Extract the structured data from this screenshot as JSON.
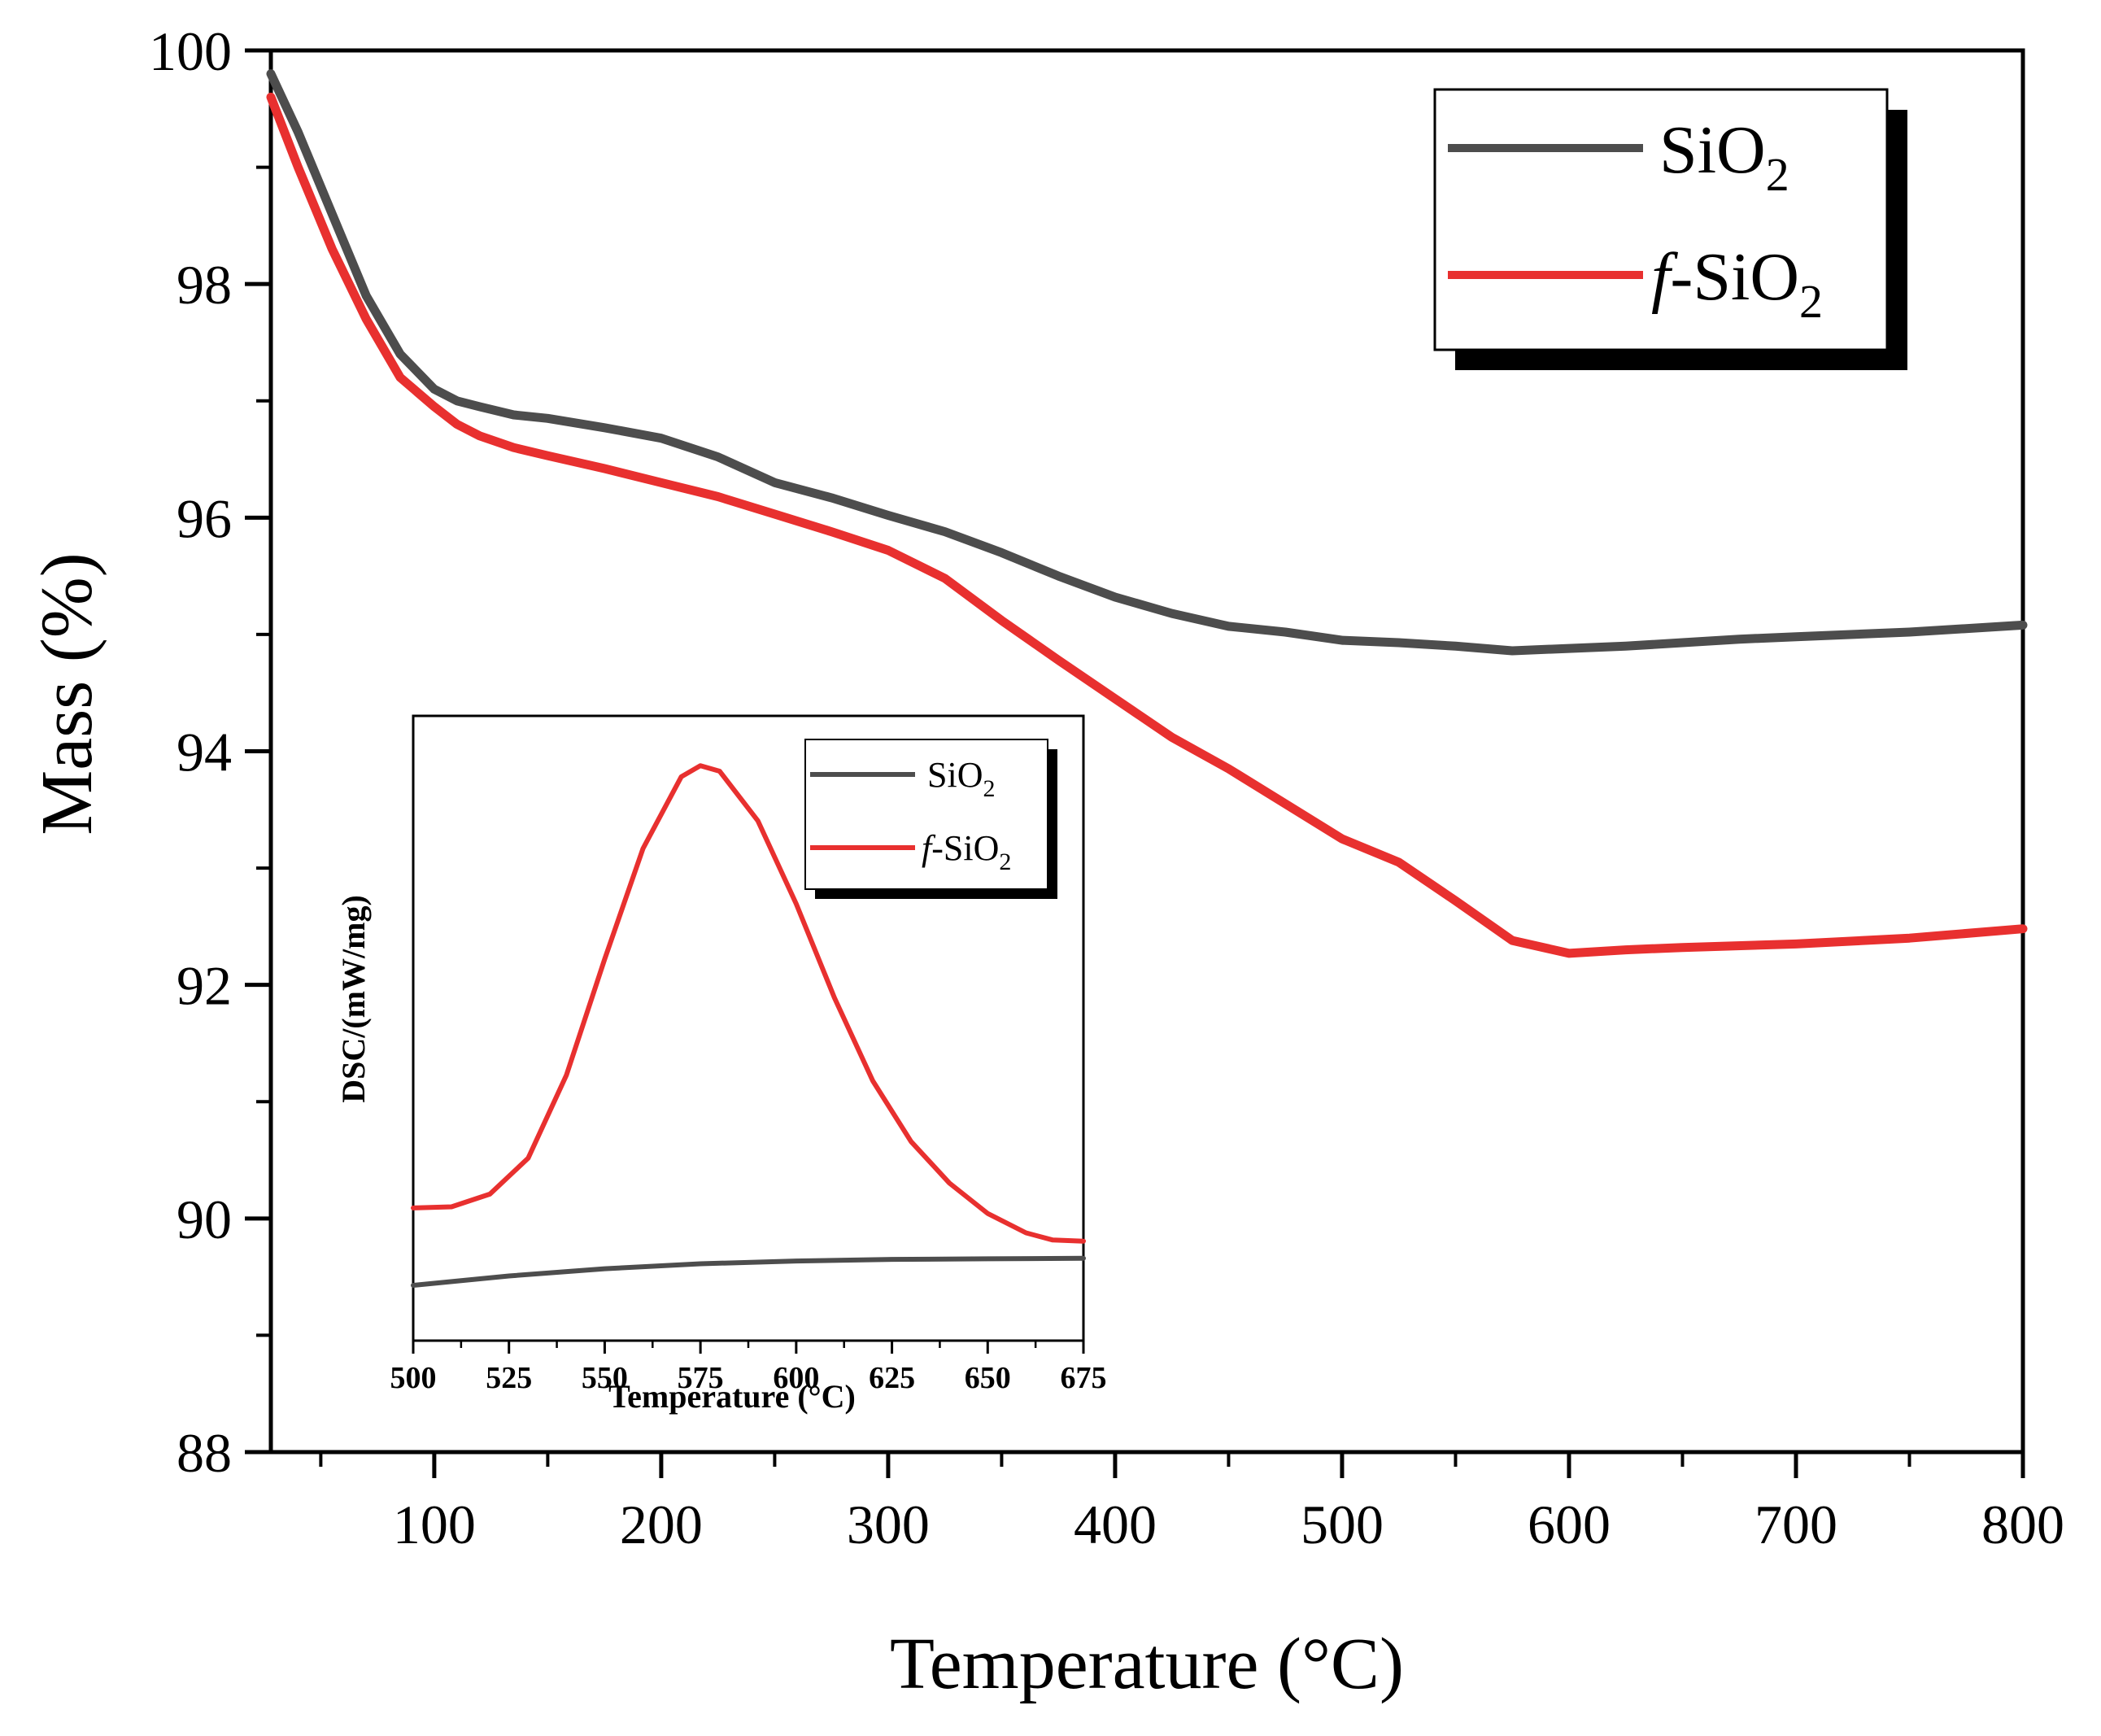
{
  "chart_data": [
    {
      "type": "line",
      "title": "",
      "xlabel": "Temperature (°C)",
      "ylabel": "Mass (%)",
      "xlim": [
        28,
        800
      ],
      "ylim": [
        88,
        100
      ],
      "xticks": [
        100,
        200,
        300,
        400,
        500,
        600,
        700,
        800
      ],
      "yticks": [
        88,
        90,
        92,
        94,
        96,
        98,
        100
      ],
      "legend": {
        "placement": "top-right"
      },
      "series": [
        {
          "name": "SiO2",
          "label_main": "SiO",
          "label_sub": "2",
          "label_prefix": "",
          "color": "#4d4d4d",
          "x": [
            28,
            40,
            55,
            70,
            85,
            100,
            110,
            120,
            135,
            150,
            175,
            200,
            225,
            250,
            275,
            300,
            325,
            350,
            375,
            400,
            425,
            450,
            475,
            500,
            525,
            550,
            575,
            600,
            625,
            650,
            675,
            700,
            750,
            800
          ],
          "y": [
            99.8,
            99.3,
            98.6,
            97.9,
            97.4,
            97.1,
            97.0,
            96.95,
            96.88,
            96.85,
            96.77,
            96.68,
            96.52,
            96.3,
            96.17,
            96.02,
            95.88,
            95.7,
            95.5,
            95.32,
            95.18,
            95.07,
            95.02,
            94.95,
            94.93,
            94.9,
            94.86,
            94.88,
            94.9,
            94.93,
            94.96,
            94.98,
            95.02,
            95.08
          ]
        },
        {
          "name": "f-SiO2",
          "label_main": "-SiO",
          "label_sub": "2",
          "label_prefix": "f",
          "color": "#e8302f",
          "x": [
            28,
            40,
            55,
            70,
            85,
            100,
            110,
            120,
            135,
            150,
            175,
            200,
            225,
            250,
            275,
            300,
            325,
            350,
            375,
            400,
            425,
            450,
            475,
            500,
            525,
            550,
            575,
            600,
            625,
            650,
            700,
            750,
            800
          ],
          "y": [
            99.6,
            99.0,
            98.3,
            97.7,
            97.2,
            96.95,
            96.8,
            96.7,
            96.6,
            96.53,
            96.42,
            96.3,
            96.18,
            96.03,
            95.88,
            95.72,
            95.48,
            95.12,
            94.78,
            94.45,
            94.12,
            93.85,
            93.55,
            93.25,
            93.05,
            92.72,
            92.38,
            92.27,
            92.3,
            92.32,
            92.35,
            92.4,
            92.48
          ]
        }
      ]
    },
    {
      "type": "line",
      "title": "",
      "xlabel": "Temperature (°C)",
      "ylabel": "DSC/(mW/mg)",
      "xlim": [
        500,
        675
      ],
      "ylim": [
        -1,
        10.3
      ],
      "xticks": [
        500,
        525,
        550,
        575,
        600,
        625,
        650,
        675
      ],
      "legend": {
        "placement": "top-right"
      },
      "series": [
        {
          "name": "SiO2",
          "label_main": "SiO",
          "label_sub": "2",
          "label_prefix": "",
          "color": "#4d4d4d",
          "x": [
            500,
            525,
            550,
            575,
            600,
            625,
            650,
            675
          ],
          "y": [
            0.0,
            0.17,
            0.3,
            0.39,
            0.44,
            0.47,
            0.48,
            0.49
          ]
        },
        {
          "name": "f-SiO2",
          "label_main": "-SiO",
          "label_sub": "2",
          "label_prefix": "f",
          "color": "#e8302f",
          "x": [
            500,
            510,
            520,
            530,
            540,
            550,
            560,
            570,
            575,
            580,
            590,
            600,
            610,
            620,
            630,
            640,
            650,
            660,
            667,
            675
          ],
          "y": [
            1.4,
            1.42,
            1.65,
            2.3,
            3.8,
            5.9,
            7.9,
            9.2,
            9.4,
            9.3,
            8.4,
            6.9,
            5.2,
            3.7,
            2.6,
            1.85,
            1.3,
            0.95,
            0.82,
            0.8
          ]
        }
      ]
    }
  ]
}
